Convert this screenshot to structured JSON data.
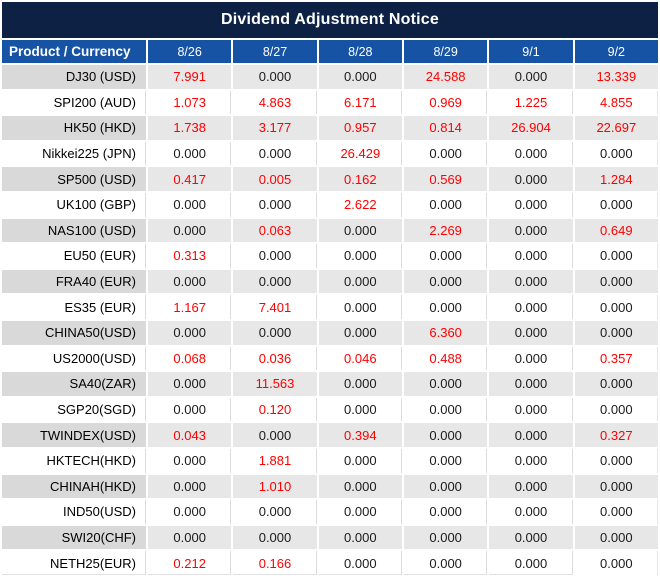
{
  "chart_data": {
    "type": "table",
    "title": "Dividend Adjustment Notice",
    "columns": [
      "Product / Currency",
      "8/26",
      "8/27",
      "8/28",
      "8/29",
      "9/1",
      "9/2"
    ],
    "rows": [
      {
        "product": "DJ30 (USD)",
        "values": [
          "7.991",
          "0.000",
          "0.000",
          "24.588",
          "0.000",
          "13.339"
        ]
      },
      {
        "product": "SPI200 (AUD)",
        "values": [
          "1.073",
          "4.863",
          "6.171",
          "0.969",
          "1.225",
          "4.855"
        ]
      },
      {
        "product": "HK50 (HKD)",
        "values": [
          "1.738",
          "3.177",
          "0.957",
          "0.814",
          "26.904",
          "22.697"
        ]
      },
      {
        "product": "Nikkei225 (JPN)",
        "values": [
          "0.000",
          "0.000",
          "26.429",
          "0.000",
          "0.000",
          "0.000"
        ]
      },
      {
        "product": "SP500 (USD)",
        "values": [
          "0.417",
          "0.005",
          "0.162",
          "0.569",
          "0.000",
          "1.284"
        ]
      },
      {
        "product": "UK100 (GBP)",
        "values": [
          "0.000",
          "0.000",
          "2.622",
          "0.000",
          "0.000",
          "0.000"
        ]
      },
      {
        "product": "NAS100 (USD)",
        "values": [
          "0.000",
          "0.063",
          "0.000",
          "2.269",
          "0.000",
          "0.649"
        ]
      },
      {
        "product": "EU50 (EUR)",
        "values": [
          "0.313",
          "0.000",
          "0.000",
          "0.000",
          "0.000",
          "0.000"
        ]
      },
      {
        "product": "FRA40 (EUR)",
        "values": [
          "0.000",
          "0.000",
          "0.000",
          "0.000",
          "0.000",
          "0.000"
        ]
      },
      {
        "product": "ES35 (EUR)",
        "values": [
          "1.167",
          "7.401",
          "0.000",
          "0.000",
          "0.000",
          "0.000"
        ]
      },
      {
        "product": "CHINA50(USD)",
        "values": [
          "0.000",
          "0.000",
          "0.000",
          "6.360",
          "0.000",
          "0.000"
        ]
      },
      {
        "product": "US2000(USD)",
        "values": [
          "0.068",
          "0.036",
          "0.046",
          "0.488",
          "0.000",
          "0.357"
        ]
      },
      {
        "product": "SA40(ZAR)",
        "values": [
          "0.000",
          "11.563",
          "0.000",
          "0.000",
          "0.000",
          "0.000"
        ]
      },
      {
        "product": "SGP20(SGD)",
        "values": [
          "0.000",
          "0.120",
          "0.000",
          "0.000",
          "0.000",
          "0.000"
        ]
      },
      {
        "product": "TWINDEX(USD)",
        "values": [
          "0.043",
          "0.000",
          "0.394",
          "0.000",
          "0.000",
          "0.327"
        ]
      },
      {
        "product": "HKTECH(HKD)",
        "values": [
          "0.000",
          "1.881",
          "0.000",
          "0.000",
          "0.000",
          "0.000"
        ]
      },
      {
        "product": "CHINAH(HKD)",
        "values": [
          "0.000",
          "1.010",
          "0.000",
          "0.000",
          "0.000",
          "0.000"
        ]
      },
      {
        "product": "IND50(USD)",
        "values": [
          "0.000",
          "0.000",
          "0.000",
          "0.000",
          "0.000",
          "0.000"
        ]
      },
      {
        "product": "SWI20(CHF)",
        "values": [
          "0.000",
          "0.000",
          "0.000",
          "0.000",
          "0.000",
          "0.000"
        ]
      },
      {
        "product": "NETH25(EUR)",
        "values": [
          "0.212",
          "0.166",
          "0.000",
          "0.000",
          "0.000",
          "0.000"
        ]
      }
    ],
    "style_rule": "non-zero adjustment values rendered red, zero values black",
    "layout_hints": {
      "row_striping": "odd data rows gray, even data rows white",
      "product_alignment": "right",
      "value_alignment": "center"
    }
  },
  "colors": {
    "title_bg": "#0D2145",
    "header_bg": "#1653A4",
    "alt_label_bg": "#D9D9D9",
    "alt_value_bg": "#E7E7E7",
    "zero_text": "#1A1A1A",
    "nonzero_text": "#FF0000",
    "header_text": "#FFFFFF"
  }
}
